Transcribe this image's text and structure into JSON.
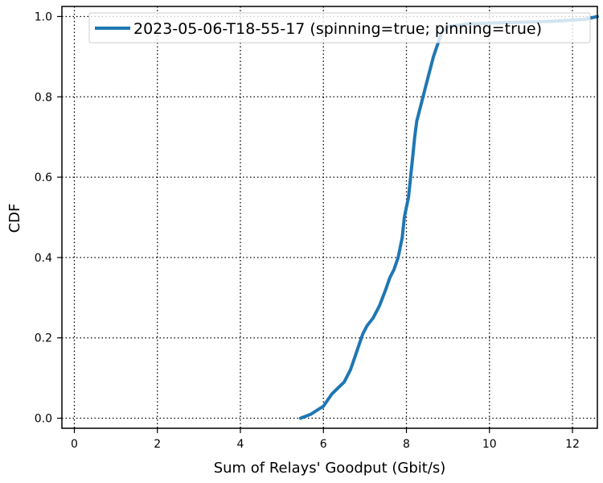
{
  "chart_data": {
    "type": "line",
    "title": "",
    "xlabel": "Sum of Relays' Goodput (Gbit/s)",
    "ylabel": "CDF",
    "xlim": [
      -0.3,
      12.6
    ],
    "ylim": [
      -0.025,
      1.025
    ],
    "xticks": [
      0,
      2,
      4,
      6,
      8,
      10,
      12
    ],
    "yticks": [
      0.0,
      0.2,
      0.4,
      0.6,
      0.8,
      1.0
    ],
    "xtick_labels": [
      "0",
      "2",
      "4",
      "6",
      "8",
      "10",
      "12"
    ],
    "ytick_labels": [
      "0.0",
      "0.2",
      "0.4",
      "0.6",
      "0.8",
      "1.0"
    ],
    "grid": true,
    "grid_style": "dotted",
    "legend_position": "upper-right",
    "series": [
      {
        "name": "2023-05-06-T18-55-17 (spinning=true; pinning=true)",
        "color": "#1f77b4",
        "x": [
          5.45,
          5.7,
          5.85,
          6.0,
          6.1,
          6.2,
          6.35,
          6.5,
          6.65,
          6.75,
          6.85,
          6.95,
          7.05,
          7.2,
          7.35,
          7.5,
          7.6,
          7.7,
          7.8,
          7.9,
          7.95,
          8.05,
          8.1,
          8.15,
          8.2,
          8.25,
          8.35,
          8.45,
          8.55,
          8.65,
          8.75,
          8.85,
          9.0,
          9.5,
          10.5,
          11.5,
          12.3,
          12.6
        ],
        "y": [
          0.0,
          0.01,
          0.02,
          0.03,
          0.045,
          0.06,
          0.075,
          0.09,
          0.12,
          0.15,
          0.18,
          0.21,
          0.23,
          0.25,
          0.28,
          0.32,
          0.35,
          0.37,
          0.4,
          0.45,
          0.5,
          0.55,
          0.6,
          0.65,
          0.7,
          0.74,
          0.78,
          0.82,
          0.86,
          0.9,
          0.93,
          0.96,
          0.975,
          0.982,
          0.985,
          0.988,
          0.993,
          1.0
        ]
      }
    ]
  }
}
